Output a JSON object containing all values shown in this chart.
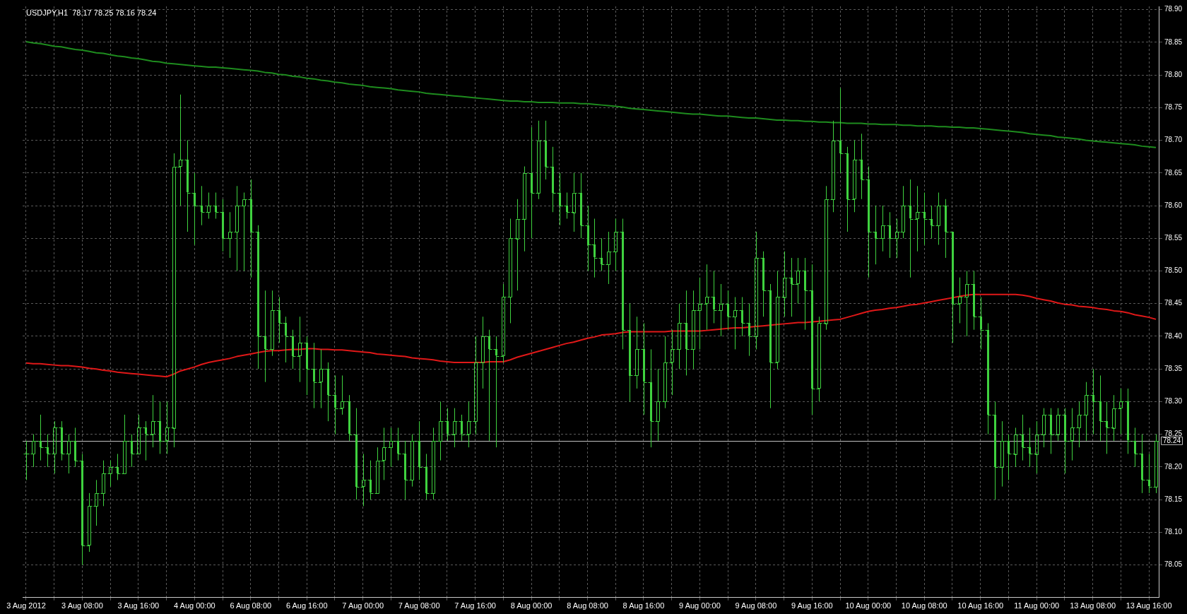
{
  "chart_data": {
    "type": "candlestick",
    "title": "USDJPY,H1  78.17 78.25 78.16 78.24",
    "color": "#3fd23f",
    "categories": [
      "3 Aug 2012",
      null,
      null,
      null,
      null,
      null,
      null,
      null,
      "3 Aug 08:00",
      null,
      null,
      null,
      null,
      null,
      null,
      null,
      "3 Aug 16:00",
      null,
      null,
      null,
      null,
      null,
      null,
      null,
      "4 Aug 00:00",
      null,
      null,
      null,
      null,
      null,
      null,
      null,
      "6 Aug 08:00",
      null,
      null,
      null,
      null,
      null,
      null,
      null,
      "6 Aug 16:00",
      null,
      null,
      null,
      null,
      null,
      null,
      null,
      "7 Aug 00:00",
      null,
      null,
      null,
      null,
      null,
      null,
      null,
      "7 Aug 08:00",
      null,
      null,
      null,
      null,
      null,
      null,
      null,
      "7 Aug 16:00",
      null,
      null,
      null,
      null,
      null,
      null,
      null,
      "8 Aug 00:00",
      null,
      null,
      null,
      null,
      null,
      null,
      null,
      "8 Aug 08:00",
      null,
      null,
      null,
      null,
      null,
      null,
      null,
      "8 Aug 16:00",
      null,
      null,
      null,
      null,
      null,
      null,
      null,
      "9 Aug 00:00",
      null,
      null,
      null,
      null,
      null,
      null,
      null,
      "9 Aug 08:00",
      null,
      null,
      null,
      null,
      null,
      null,
      null,
      "9 Aug 16:00",
      null,
      null,
      null,
      null,
      null,
      null,
      null,
      "10 Aug 00:00",
      null,
      null,
      null,
      null,
      null,
      null,
      null,
      "10 Aug 08:00",
      null,
      null,
      null,
      null,
      null,
      null,
      null,
      "10 Aug 16:00",
      null,
      null,
      null,
      null,
      null,
      null,
      null,
      "11 Aug 00:00",
      null,
      null,
      null,
      null,
      null,
      null,
      null,
      "13 Aug 08:00",
      null,
      null,
      null,
      null,
      null,
      null,
      null,
      "13 Aug 16:00",
      null
    ],
    "ohlc": [
      [
        78.22,
        78.24,
        78.18,
        78.22
      ],
      [
        78.22,
        78.25,
        78.2,
        78.24
      ],
      [
        78.24,
        78.28,
        78.21,
        78.23
      ],
      [
        78.23,
        78.25,
        78.2,
        78.22
      ],
      [
        78.22,
        78.27,
        78.19,
        78.26
      ],
      [
        78.26,
        78.27,
        78.21,
        78.22
      ],
      [
        78.22,
        78.25,
        78.19,
        78.24
      ],
      [
        78.24,
        78.26,
        78.2,
        78.21
      ],
      [
        78.21,
        78.22,
        78.05,
        78.08
      ],
      [
        78.08,
        78.16,
        78.07,
        78.14
      ],
      [
        78.14,
        78.18,
        78.11,
        78.16
      ],
      [
        78.16,
        78.21,
        78.14,
        78.19
      ],
      [
        78.19,
        78.21,
        78.17,
        78.2
      ],
      [
        78.2,
        78.22,
        78.18,
        78.19
      ],
      [
        78.19,
        78.28,
        78.19,
        78.24
      ],
      [
        78.24,
        78.25,
        78.2,
        78.22
      ],
      [
        78.22,
        78.28,
        78.22,
        78.26
      ],
      [
        78.26,
        78.27,
        78.21,
        78.25
      ],
      [
        78.25,
        78.31,
        78.23,
        78.27
      ],
      [
        78.27,
        78.3,
        78.22,
        78.24
      ],
      [
        78.24,
        78.3,
        78.22,
        78.26
      ],
      [
        78.26,
        78.68,
        78.23,
        78.66
      ],
      [
        78.66,
        78.77,
        78.6,
        78.67
      ],
      [
        78.67,
        78.7,
        78.56,
        78.62
      ],
      [
        78.62,
        78.65,
        78.54,
        78.6
      ],
      [
        78.6,
        78.63,
        78.57,
        78.59
      ],
      [
        78.59,
        78.62,
        78.58,
        78.6
      ],
      [
        78.6,
        78.62,
        78.58,
        78.59
      ],
      [
        78.59,
        78.61,
        78.53,
        78.55
      ],
      [
        78.55,
        78.59,
        78.52,
        78.56
      ],
      [
        78.56,
        78.63,
        78.5,
        78.6
      ],
      [
        78.6,
        78.62,
        78.5,
        78.61
      ],
      [
        78.61,
        78.64,
        78.49,
        78.56
      ],
      [
        78.56,
        78.57,
        78.35,
        78.4
      ],
      [
        78.4,
        78.47,
        78.33,
        78.38
      ],
      [
        78.38,
        78.47,
        78.37,
        78.44
      ],
      [
        78.44,
        78.46,
        78.39,
        78.42
      ],
      [
        78.42,
        78.43,
        78.36,
        78.4
      ],
      [
        78.4,
        78.41,
        78.35,
        78.37
      ],
      [
        78.37,
        78.43,
        78.33,
        78.39
      ],
      [
        78.39,
        78.4,
        78.31,
        78.35
      ],
      [
        78.35,
        78.39,
        78.29,
        78.33
      ],
      [
        78.33,
        78.38,
        78.29,
        78.35
      ],
      [
        78.35,
        78.36,
        78.27,
        78.31
      ],
      [
        78.31,
        78.34,
        78.25,
        78.29
      ],
      [
        78.29,
        78.34,
        78.28,
        78.3
      ],
      [
        78.3,
        78.31,
        78.24,
        78.25
      ],
      [
        78.25,
        78.29,
        78.15,
        78.17
      ],
      [
        78.17,
        78.22,
        78.14,
        78.18
      ],
      [
        78.18,
        78.21,
        78.15,
        78.16
      ],
      [
        78.16,
        78.23,
        78.16,
        78.21
      ],
      [
        78.21,
        78.26,
        78.18,
        78.23
      ],
      [
        78.23,
        78.26,
        78.2,
        78.24
      ],
      [
        78.24,
        78.26,
        78.21,
        78.22
      ],
      [
        78.22,
        78.24,
        78.15,
        78.18
      ],
      [
        78.18,
        78.25,
        78.17,
        78.24
      ],
      [
        78.24,
        78.27,
        78.18,
        78.2
      ],
      [
        78.2,
        78.22,
        78.15,
        78.16
      ],
      [
        78.16,
        78.26,
        78.15,
        78.24
      ],
      [
        78.24,
        78.3,
        78.21,
        78.27
      ],
      [
        78.27,
        78.29,
        78.24,
        78.25
      ],
      [
        78.25,
        78.29,
        78.23,
        78.27
      ],
      [
        78.27,
        78.28,
        78.24,
        78.25
      ],
      [
        78.25,
        78.3,
        78.23,
        78.27
      ],
      [
        78.27,
        78.4,
        78.25,
        78.36
      ],
      [
        78.36,
        78.43,
        78.32,
        78.4
      ],
      [
        78.4,
        78.41,
        78.24,
        78.38
      ],
      [
        78.38,
        78.4,
        78.23,
        78.37
      ],
      [
        78.37,
        78.48,
        78.36,
        78.46
      ],
      [
        78.46,
        78.58,
        78.42,
        78.55
      ],
      [
        78.55,
        78.61,
        78.47,
        78.58
      ],
      [
        78.58,
        78.66,
        78.53,
        78.65
      ],
      [
        78.65,
        78.72,
        78.55,
        78.62
      ],
      [
        78.62,
        78.73,
        78.61,
        78.7
      ],
      [
        78.7,
        78.73,
        78.64,
        78.66
      ],
      [
        78.66,
        78.69,
        78.59,
        78.62
      ],
      [
        78.62,
        78.65,
        78.57,
        78.6
      ],
      [
        78.6,
        78.62,
        78.58,
        78.59
      ],
      [
        78.59,
        78.65,
        78.56,
        78.62
      ],
      [
        78.62,
        78.65,
        78.55,
        78.57
      ],
      [
        78.57,
        78.6,
        78.5,
        78.54
      ],
      [
        78.54,
        78.58,
        78.49,
        78.52
      ],
      [
        78.52,
        78.55,
        78.5,
        78.51
      ],
      [
        78.51,
        78.56,
        78.48,
        78.53
      ],
      [
        78.53,
        78.58,
        78.5,
        78.56
      ],
      [
        78.56,
        78.58,
        78.38,
        78.41
      ],
      [
        78.41,
        78.45,
        78.3,
        78.34
      ],
      [
        78.34,
        78.43,
        78.32,
        78.38
      ],
      [
        78.38,
        78.42,
        78.28,
        78.33
      ],
      [
        78.33,
        78.38,
        78.23,
        78.27
      ],
      [
        78.27,
        78.35,
        78.24,
        78.3
      ],
      [
        78.3,
        78.4,
        78.29,
        78.36
      ],
      [
        78.36,
        78.41,
        78.31,
        78.38
      ],
      [
        78.38,
        78.45,
        78.35,
        78.42
      ],
      [
        78.42,
        78.47,
        78.34,
        78.38
      ],
      [
        78.38,
        78.47,
        78.35,
        78.44
      ],
      [
        78.44,
        78.49,
        78.38,
        78.45
      ],
      [
        78.45,
        78.51,
        78.41,
        78.46
      ],
      [
        78.46,
        78.5,
        78.42,
        78.44
      ],
      [
        78.44,
        78.48,
        78.4,
        78.45
      ],
      [
        78.45,
        78.47,
        78.41,
        78.43
      ],
      [
        78.43,
        78.46,
        78.38,
        78.44
      ],
      [
        78.44,
        78.46,
        78.4,
        78.42
      ],
      [
        78.42,
        78.45,
        78.37,
        78.4
      ],
      [
        78.4,
        78.56,
        78.38,
        78.52
      ],
      [
        78.52,
        78.53,
        78.43,
        78.47
      ],
      [
        78.47,
        78.48,
        78.29,
        78.36
      ],
      [
        78.36,
        78.5,
        78.35,
        78.46
      ],
      [
        78.46,
        78.53,
        78.43,
        78.49
      ],
      [
        78.49,
        78.52,
        78.43,
        78.48
      ],
      [
        78.48,
        78.52,
        78.45,
        78.5
      ],
      [
        78.5,
        78.52,
        78.41,
        78.47
      ],
      [
        78.47,
        78.51,
        78.28,
        78.32
      ],
      [
        78.32,
        78.43,
        78.3,
        78.42
      ],
      [
        78.42,
        78.63,
        78.41,
        78.61
      ],
      [
        78.61,
        78.73,
        78.59,
        78.7
      ],
      [
        78.7,
        78.78,
        78.65,
        78.68
      ],
      [
        78.68,
        78.69,
        78.56,
        78.61
      ],
      [
        78.61,
        78.7,
        78.59,
        78.67
      ],
      [
        78.67,
        78.71,
        78.61,
        78.64
      ],
      [
        78.64,
        78.66,
        78.49,
        78.56
      ],
      [
        78.56,
        78.6,
        78.51,
        78.55
      ],
      [
        78.55,
        78.6,
        78.53,
        78.57
      ],
      [
        78.57,
        78.59,
        78.52,
        78.55
      ],
      [
        78.55,
        78.58,
        78.52,
        78.56
      ],
      [
        78.56,
        78.63,
        78.55,
        78.6
      ],
      [
        78.6,
        78.64,
        78.49,
        78.58
      ],
      [
        78.58,
        78.63,
        78.53,
        78.59
      ],
      [
        78.59,
        78.62,
        78.54,
        78.58
      ],
      [
        78.58,
        78.6,
        78.55,
        78.57
      ],
      [
        78.57,
        78.62,
        78.54,
        78.6
      ],
      [
        78.6,
        78.61,
        78.52,
        78.56
      ],
      [
        78.56,
        78.56,
        78.39,
        78.45
      ],
      [
        78.45,
        78.49,
        78.42,
        78.46
      ],
      [
        78.46,
        78.5,
        78.4,
        78.48
      ],
      [
        78.48,
        78.5,
        78.41,
        78.43
      ],
      [
        78.43,
        78.46,
        78.38,
        78.41
      ],
      [
        78.41,
        78.42,
        78.25,
        78.28
      ],
      [
        78.28,
        78.3,
        78.15,
        78.2
      ],
      [
        78.2,
        78.27,
        78.17,
        78.24
      ],
      [
        78.24,
        78.25,
        78.18,
        78.22
      ],
      [
        78.22,
        78.26,
        78.2,
        78.25
      ],
      [
        78.25,
        78.28,
        78.21,
        78.23
      ],
      [
        78.23,
        78.26,
        78.2,
        78.22
      ],
      [
        78.22,
        78.27,
        78.19,
        78.25
      ],
      [
        78.25,
        78.29,
        78.23,
        78.28
      ],
      [
        78.28,
        78.29,
        78.22,
        78.25
      ],
      [
        78.25,
        78.29,
        78.24,
        78.28
      ],
      [
        78.28,
        78.29,
        78.19,
        78.24
      ],
      [
        78.24,
        78.29,
        78.21,
        78.26
      ],
      [
        78.26,
        78.3,
        78.23,
        78.28
      ],
      [
        78.28,
        78.33,
        78.24,
        78.31
      ],
      [
        78.31,
        78.35,
        78.25,
        78.3
      ],
      [
        78.3,
        78.34,
        78.24,
        78.27
      ],
      [
        78.27,
        78.3,
        78.22,
        78.26
      ],
      [
        78.26,
        78.31,
        78.24,
        78.29
      ],
      [
        78.29,
        78.32,
        78.25,
        78.3
      ],
      [
        78.3,
        78.32,
        78.22,
        78.24
      ],
      [
        78.24,
        78.26,
        78.2,
        78.22
      ],
      [
        78.22,
        78.25,
        78.16,
        78.18
      ],
      [
        78.18,
        78.22,
        78.16,
        78.17
      ],
      [
        78.17,
        78.25,
        78.16,
        78.24
      ]
    ],
    "series": [
      {
        "type": "line",
        "color": "#1e8c1e",
        "values": [
          78.851,
          78.849,
          78.848,
          78.846,
          78.844,
          78.843,
          78.841,
          78.839,
          78.838,
          78.836,
          78.834,
          78.833,
          78.831,
          78.829,
          78.828,
          78.826,
          78.825,
          78.823,
          78.821,
          78.82,
          78.818,
          78.817,
          78.816,
          78.815,
          78.814,
          78.813,
          78.812,
          78.812,
          78.811,
          78.81,
          78.809,
          78.808,
          78.807,
          78.806,
          78.804,
          78.803,
          78.801,
          78.8,
          78.798,
          78.797,
          78.795,
          78.794,
          78.792,
          78.791,
          78.789,
          78.788,
          78.786,
          78.785,
          78.784,
          78.782,
          78.781,
          78.78,
          78.779,
          78.777,
          78.776,
          78.775,
          78.774,
          78.772,
          78.771,
          78.77,
          78.769,
          78.768,
          78.767,
          78.766,
          78.765,
          78.764,
          78.763,
          78.762,
          78.761,
          78.76,
          78.76,
          78.759,
          78.759,
          78.758,
          78.758,
          78.758,
          78.757,
          78.757,
          78.757,
          78.756,
          78.756,
          78.755,
          78.754,
          78.753,
          78.752,
          78.751,
          78.749,
          78.748,
          78.747,
          78.746,
          78.745,
          78.744,
          78.743,
          78.742,
          78.741,
          78.74,
          78.74,
          78.739,
          78.738,
          78.737,
          78.737,
          78.736,
          78.735,
          78.734,
          78.734,
          78.733,
          78.732,
          78.731,
          78.731,
          78.73,
          78.73,
          78.729,
          78.729,
          78.728,
          78.728,
          78.727,
          78.727,
          78.726,
          78.726,
          78.726,
          78.725,
          78.725,
          78.724,
          78.724,
          78.724,
          78.723,
          78.723,
          78.722,
          78.722,
          78.722,
          78.721,
          78.721,
          78.72,
          78.72,
          78.719,
          78.719,
          78.718,
          78.717,
          78.716,
          78.715,
          78.714,
          78.713,
          78.712,
          78.71,
          78.709,
          78.708,
          78.707,
          78.705,
          78.704,
          78.703,
          78.702,
          78.7,
          78.699,
          78.698,
          78.697,
          78.696,
          78.695,
          78.694,
          78.693,
          78.691,
          78.69,
          78.689
        ]
      },
      {
        "type": "line",
        "color": "#e01818",
        "values": [
          78.359,
          78.358,
          78.358,
          78.357,
          78.356,
          78.355,
          78.355,
          78.354,
          78.353,
          78.351,
          78.35,
          78.348,
          78.347,
          78.345,
          78.344,
          78.343,
          78.342,
          78.341,
          78.34,
          78.339,
          78.338,
          78.342,
          78.347,
          78.35,
          78.353,
          78.357,
          78.36,
          78.362,
          78.364,
          78.366,
          78.369,
          78.371,
          78.373,
          78.375,
          78.377,
          78.378,
          78.378,
          78.379,
          78.38,
          78.38,
          78.381,
          78.381,
          78.38,
          78.38,
          78.379,
          78.379,
          78.378,
          78.377,
          78.376,
          78.375,
          78.373,
          78.372,
          78.371,
          78.37,
          78.369,
          78.367,
          78.366,
          78.365,
          78.364,
          78.362,
          78.361,
          78.36,
          78.36,
          78.36,
          78.36,
          78.36,
          78.361,
          78.361,
          78.361,
          78.364,
          78.368,
          78.371,
          78.374,
          78.377,
          78.38,
          78.383,
          78.386,
          78.389,
          78.391,
          78.394,
          78.397,
          78.399,
          78.402,
          78.403,
          78.404,
          78.406,
          78.407,
          78.407,
          78.407,
          78.407,
          78.407,
          78.407,
          78.408,
          78.408,
          78.408,
          78.408,
          78.408,
          78.409,
          78.41,
          78.411,
          78.412,
          78.413,
          78.413,
          78.414,
          78.415,
          78.416,
          78.417,
          78.418,
          78.419,
          78.42,
          78.421,
          78.421,
          78.422,
          78.423,
          78.424,
          78.425,
          78.426,
          78.429,
          78.432,
          78.435,
          78.438,
          78.44,
          78.441,
          78.443,
          78.444,
          78.446,
          78.448,
          78.449,
          78.451,
          78.453,
          78.455,
          78.457,
          78.459,
          78.461,
          78.463,
          78.464,
          78.464,
          78.464,
          78.464,
          78.464,
          78.464,
          78.464,
          78.463,
          78.461,
          78.458,
          78.456,
          78.454,
          78.451,
          78.449,
          78.448,
          78.446,
          78.445,
          78.444,
          78.442,
          78.441,
          78.439,
          78.438,
          78.436,
          78.433,
          78.431,
          78.429,
          78.426
        ]
      }
    ],
    "ylim": [
      78.0,
      78.905
    ],
    "yticks": [
      78.05,
      {
        "value": 78.1,
        "label": "78.10"
      },
      78.15,
      {
        "value": 78.2,
        "label": "78.20"
      },
      78.25,
      {
        "value": 78.3,
        "label": "78.30"
      },
      78.35,
      {
        "value": 78.4,
        "label": "78.40"
      },
      78.45,
      {
        "value": 78.5,
        "label": "78.50"
      },
      78.55,
      {
        "value": 78.6,
        "label": "78.60"
      },
      78.65,
      {
        "value": 78.7,
        "label": "78.70"
      },
      78.75,
      {
        "value": 78.8,
        "label": "78.80"
      },
      78.85,
      {
        "value": 78.9,
        "label": "78.90"
      }
    ],
    "grid": true,
    "marker": "none",
    "ref_lines": [
      {
        "axis": "y",
        "value": 78.24,
        "label": "78.24",
        "color": "#c0c0c0"
      }
    ]
  }
}
